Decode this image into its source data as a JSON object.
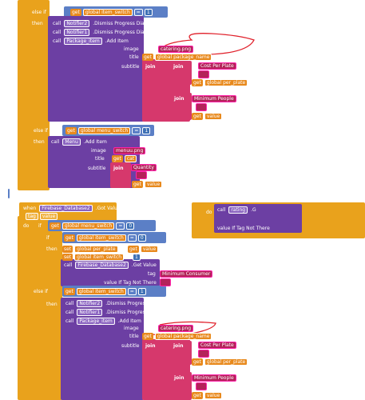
{
  "top": [
    [
      "value If Tag Not There"
    ],
    [
      "else if"
    ],
    [
      "get",
      "global item_switch",
      "=",
      "1"
    ],
    [
      "then"
    ],
    [
      "call",
      "Notifier2",
      ".Dismiss Progress Dialog"
    ],
    [
      "call",
      "Notifier1",
      ".Dismiss Progress Dialog"
    ],
    [
      "call",
      "Package_item",
      ".Add Item"
    ],
    [
      "image"
    ],
    [
      "catering.png"
    ],
    [
      "title"
    ],
    [
      "get",
      "global package_name"
    ],
    [
      "subtitle"
    ],
    [
      "join"
    ],
    [
      "join"
    ],
    [
      "Cost Per Plate"
    ],
    [
      "get",
      "global per_plate"
    ],
    [
      "join"
    ],
    [
      "Minimum People"
    ],
    [
      "get",
      "value"
    ],
    [
      "else if"
    ],
    [
      "get",
      "global menu_switch",
      "=",
      "1"
    ],
    [
      "then"
    ],
    [
      "call",
      "Menu",
      ".Add Item"
    ],
    [
      "image"
    ],
    [
      "menuu.png"
    ],
    [
      "title"
    ],
    [
      "get",
      "cat"
    ],
    [
      "subtitle"
    ],
    [
      "join"
    ],
    [
      "Quantity"
    ],
    [
      "get",
      "value"
    ]
  ],
  "side": [
    [
      "do"
    ],
    [
      "call",
      "rating",
      ".G"
    ],
    [
      "value If Tag Not There"
    ]
  ],
  "bottom": [
    [
      "when",
      "Firebase_Database2",
      ".Got Value"
    ],
    [
      "tag",
      "value"
    ],
    [
      "do"
    ],
    [
      "if"
    ],
    [
      "get",
      "global menu_switch",
      "=",
      "0"
    ],
    [
      "if"
    ],
    [
      "get",
      "global item_switch",
      "=",
      "0"
    ],
    [
      "then"
    ],
    [
      "set",
      "global per_plate",
      "to"
    ],
    [
      "get",
      "value"
    ],
    [
      "set",
      "global item_switch",
      "to"
    ],
    [
      "1"
    ],
    [
      "call",
      "Firebase_Database2",
      ".Get Value"
    ],
    [
      "tag"
    ],
    [
      "Minimum Consumer"
    ],
    [
      "value If Tag Not There"
    ],
    [
      "else if"
    ],
    [
      "get",
      "global item_switch",
      "=",
      "1"
    ],
    [
      "then"
    ],
    [
      "call",
      "Notifier2",
      ".Dismiss Progress Dialog"
    ],
    [
      "call",
      "Notifier1",
      ".Dismiss Progress Dialog"
    ],
    [
      "call",
      "Package_item",
      ".Add Item"
    ],
    [
      "image"
    ],
    [
      "catering.png"
    ],
    [
      "title"
    ],
    [
      "get",
      "global package_name"
    ],
    [
      "subtitle"
    ],
    [
      "join"
    ],
    [
      "join"
    ],
    [
      "Cost Per Plate"
    ],
    [
      "get",
      "global per_plate"
    ],
    [
      "join"
    ],
    [
      "Minimum People"
    ],
    [
      "get",
      "value"
    ]
  ]
}
